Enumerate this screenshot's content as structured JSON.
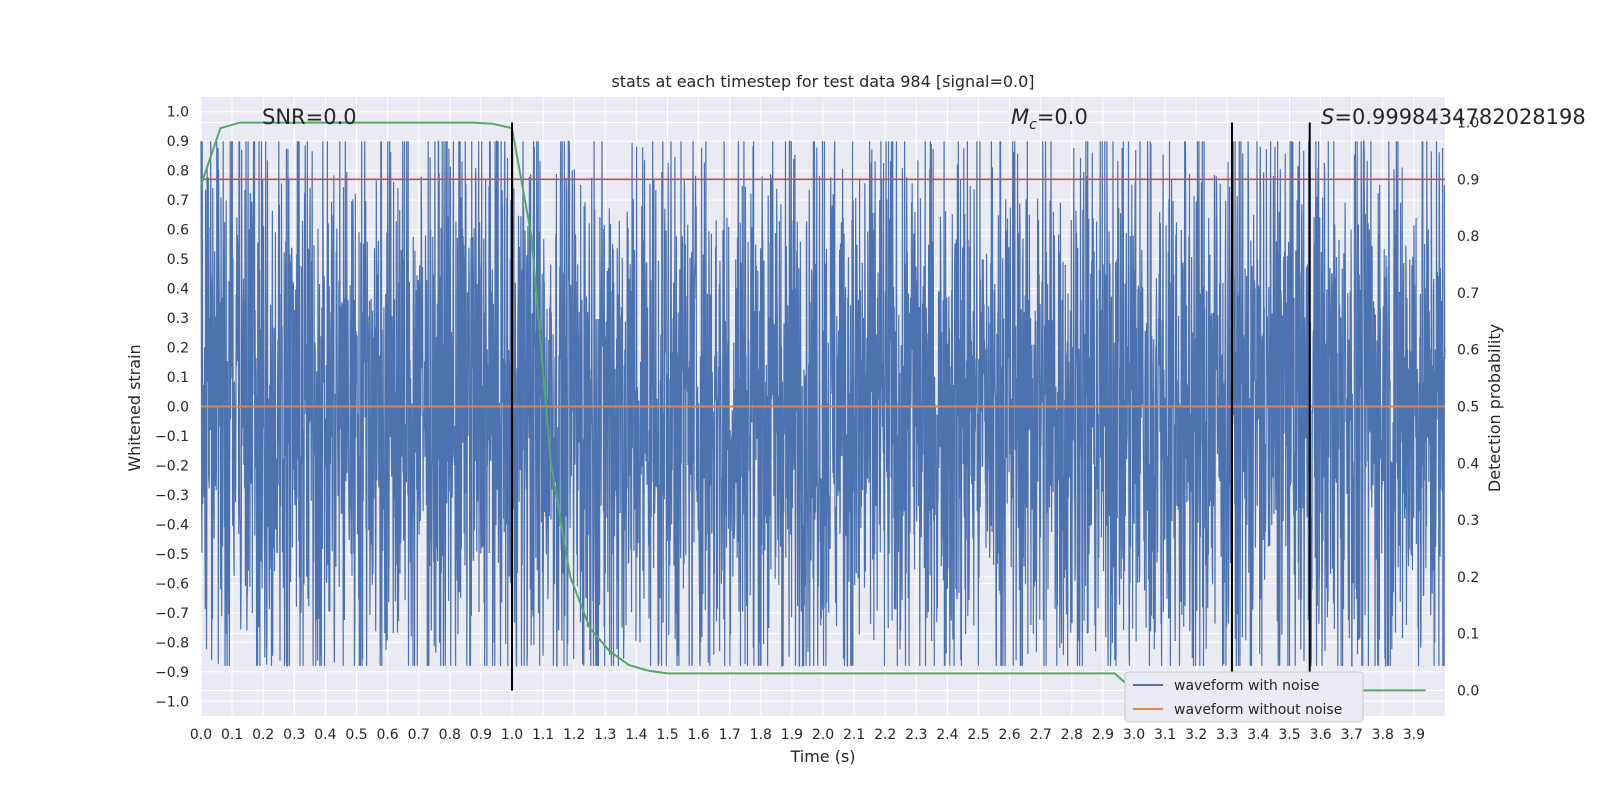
{
  "chart_data": {
    "type": "line",
    "title": "stats at each timestep for test data 984 [signal=0.0]",
    "xlabel": "Time (s)",
    "ylabel": "Whitened strain",
    "y2label": "Detection probability",
    "xlim": [
      0.0,
      4.0
    ],
    "ylim": [
      -1.05,
      1.05
    ],
    "y2lim": [
      -0.045,
      1.045
    ],
    "x_tick_labels": [
      "0.0",
      "0.1",
      "0.2",
      "0.3",
      "0.4",
      "0.5",
      "0.6",
      "0.7",
      "0.8",
      "0.9",
      "1.0",
      "1.1",
      "1.2",
      "1.3",
      "1.4",
      "1.5",
      "1.6",
      "1.7",
      "1.8",
      "1.9",
      "2.0",
      "2.1",
      "2.2",
      "2.3",
      "2.4",
      "2.5",
      "2.6",
      "2.7",
      "2.8",
      "2.9",
      "3.0",
      "3.1",
      "3.2",
      "3.3",
      "3.4",
      "3.5",
      "3.6",
      "3.7",
      "3.8",
      "3.9"
    ],
    "y_tick_labels": [
      "1.0",
      "0.9",
      "0.8",
      "0.7",
      "0.6",
      "0.5",
      "0.4",
      "0.3",
      "0.2",
      "0.1",
      "0.0",
      "−0.1",
      "−0.2",
      "−0.3",
      "−0.4",
      "−0.5",
      "−0.6",
      "−0.7",
      "−0.8",
      "−0.9",
      "−1.0"
    ],
    "y2_tick_labels": [
      "1.0",
      "0.9",
      "0.8",
      "0.7",
      "0.6",
      "0.5",
      "0.4",
      "0.3",
      "0.2",
      "0.1",
      "0.0"
    ],
    "grid": true,
    "legend_position": "lower-right",
    "annotations": {
      "snr": "SNR=0.0",
      "mc_symbol": "M",
      "mc_sub": "c",
      "mc_value": "=0.0",
      "s_symbol": "S",
      "s_value": "=0.9998434782028198"
    },
    "series": [
      {
        "name": "waveform with noise",
        "axis": "left",
        "color": "#4c72b0",
        "description_values": "noisy whitened strain, approximately uniform noise between -0.9 and 0.95",
        "peaks": [
          0.94,
          0.95,
          0.84,
          0.8,
          0.9,
          0.93,
          1.0,
          0.82
        ],
        "troughs": [
          -0.93,
          -0.93,
          -0.9,
          -0.85,
          -0.88,
          -0.79,
          -0.78
        ]
      },
      {
        "name": "waveform without noise",
        "axis": "left",
        "color": "#dd8452",
        "x": [
          0.0,
          4.0
        ],
        "y": [
          0.0,
          0.0
        ]
      },
      {
        "name": "detection probability",
        "axis": "right",
        "color": "#55a868",
        "x": [
          0.0,
          0.0625,
          0.125,
          0.1875,
          0.25,
          0.3125,
          0.375,
          0.4375,
          0.5,
          0.5625,
          0.625,
          0.6875,
          0.75,
          0.8125,
          0.875,
          0.9375,
          1.0,
          1.0625,
          1.125,
          1.1875,
          1.25,
          1.3125,
          1.375,
          1.4375,
          1.5,
          1.5625,
          1.625,
          1.6875,
          1.75,
          1.8125,
          1.875,
          1.9375,
          2.0,
          2.0625,
          2.125,
          2.1875,
          2.25,
          2.3125,
          2.375,
          2.4375,
          2.5,
          2.5625,
          2.625,
          2.6875,
          2.75,
          2.8125,
          2.875,
          2.9375,
          3.0,
          3.0625,
          3.125,
          3.1875,
          3.25,
          3.3125,
          3.375,
          3.4375,
          3.5,
          3.5625,
          3.625,
          3.6875,
          3.75,
          3.8125,
          3.875,
          3.9375
        ],
        "y": [
          0.89,
          0.99,
          1.0,
          1.0,
          1.0,
          1.0,
          1.0,
          1.0,
          1.0,
          1.0,
          1.0,
          1.0,
          1.0,
          1.0,
          1.0,
          0.998,
          0.99,
          0.8,
          0.4,
          0.2,
          0.11,
          0.07,
          0.045,
          0.035,
          0.03,
          0.03,
          0.03,
          0.03,
          0.03,
          0.03,
          0.03,
          0.03,
          0.03,
          0.03,
          0.03,
          0.03,
          0.03,
          0.03,
          0.03,
          0.03,
          0.03,
          0.03,
          0.03,
          0.03,
          0.03,
          0.03,
          0.03,
          0.03,
          0.0,
          0.0,
          0.0,
          0.0,
          0.0,
          0.0,
          0.0,
          0.0,
          0.0,
          0.0,
          0.0,
          0.0,
          0.0,
          0.0,
          0.0,
          0.0
        ]
      },
      {
        "name": "threshold",
        "axis": "right",
        "color": "#c44e52",
        "x": [
          0.0,
          4.0
        ],
        "y": [
          0.9,
          0.9
        ]
      }
    ],
    "vertical_markers_x": [
      1.0,
      3.315,
      3.565
    ],
    "vertical_marker_color": "#000000"
  }
}
